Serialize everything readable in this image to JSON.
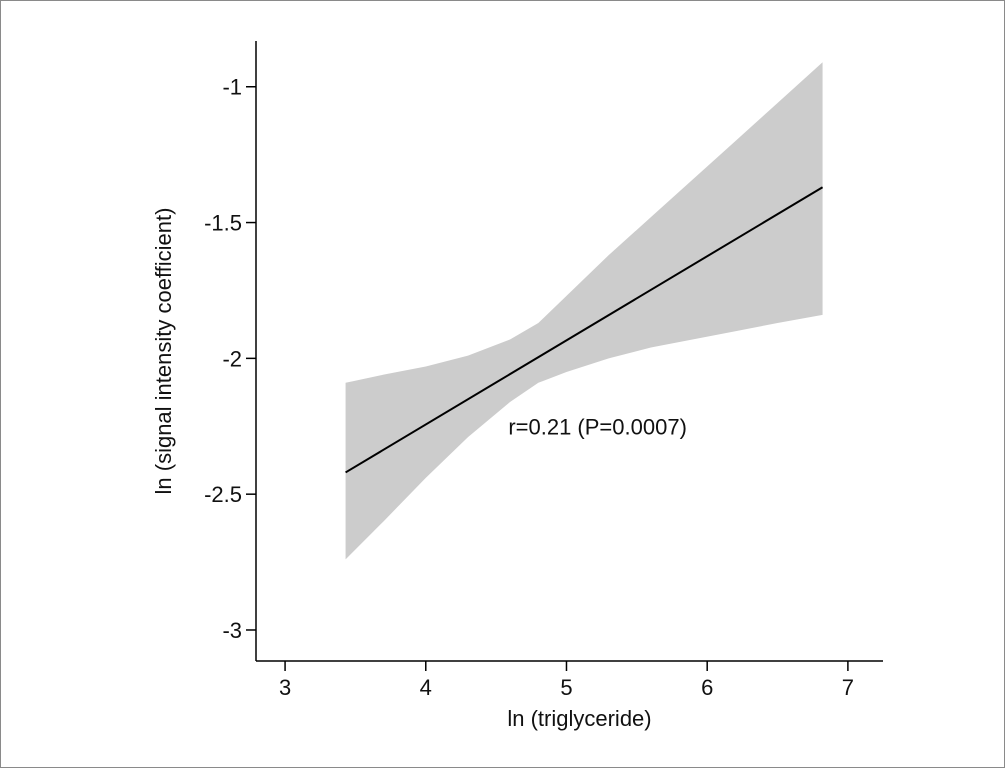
{
  "chart_data": {
    "type": "line",
    "title": "",
    "xlabel": "ln (triglyceride)",
    "ylabel": "ln (signal intensity coefficient)",
    "xlim": [
      2.9,
      7.15
    ],
    "ylim": [
      -3.07,
      -0.85
    ],
    "x_ticks": [
      3,
      4,
      5,
      6,
      7
    ],
    "y_ticks": [
      -1,
      -1.5,
      -2,
      -2.5,
      -3
    ],
    "x_tick_labels": [
      "3",
      "4",
      "5",
      "6",
      "7"
    ],
    "y_tick_labels": [
      "-1",
      "-1.5",
      "-2",
      "-2.5",
      "-3"
    ],
    "grid": false,
    "series": [
      {
        "kind": "fit-line",
        "color": "#000000",
        "x": [
          3.43,
          6.82
        ],
        "y": [
          -2.42,
          -1.37
        ]
      },
      {
        "kind": "confidence-band",
        "color": "#cccccc",
        "x": [
          3.43,
          3.7,
          4.0,
          4.3,
          4.6,
          4.8,
          5.0,
          5.3,
          5.6,
          5.9,
          6.2,
          6.5,
          6.82
        ],
        "upper": [
          -2.09,
          -2.06,
          -2.03,
          -1.99,
          -1.93,
          -1.87,
          -1.77,
          -1.62,
          -1.48,
          -1.34,
          -1.2,
          -1.06,
          -0.91
        ],
        "lower": [
          -2.74,
          -2.6,
          -2.44,
          -2.29,
          -2.16,
          -2.09,
          -2.05,
          -2.0,
          -1.96,
          -1.93,
          -1.9,
          -1.87,
          -1.84
        ]
      }
    ],
    "annotations": [
      {
        "text": "r=0.21 (P=0.0007)",
        "x": 4.8,
        "y": -2.25
      }
    ]
  }
}
